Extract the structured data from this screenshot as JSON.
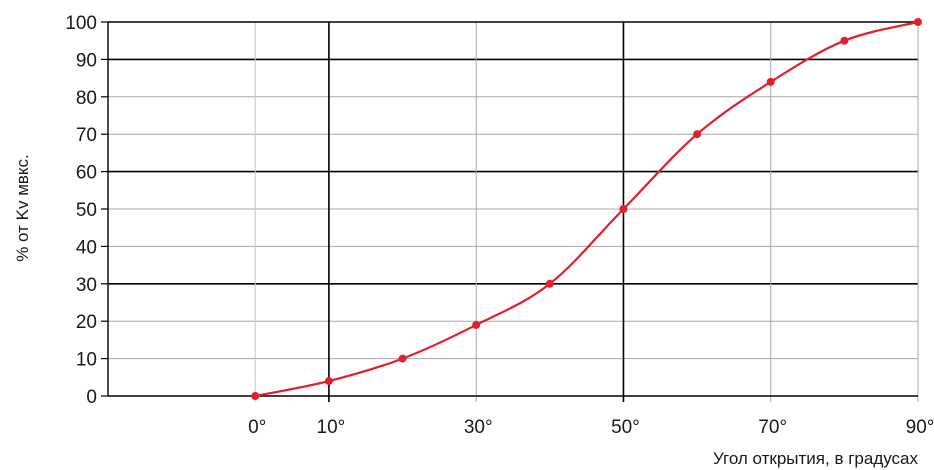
{
  "chart_data": {
    "type": "line",
    "title": "",
    "xlabel": "Угол открытия, в градусах",
    "ylabel": "% от Kv мвкс.",
    "xlim": [
      -20,
      90
    ],
    "ylim": [
      0,
      100
    ],
    "x_ticks": [
      0,
      10,
      30,
      50,
      70,
      90
    ],
    "x_tick_labels": [
      "0°",
      "10°",
      "30°",
      "50°",
      "70°",
      "90°"
    ],
    "y_ticks": [
      0,
      10,
      20,
      30,
      40,
      50,
      60,
      70,
      80,
      90,
      100
    ],
    "y_tick_labels": [
      "0",
      "10",
      "20",
      "30",
      "40",
      "50",
      "60",
      "70",
      "80",
      "90",
      "100"
    ],
    "grid": true,
    "legend": "none",
    "series": [
      {
        "color": "#e0202e",
        "x": [
          0,
          10,
          20,
          30,
          40,
          50,
          60,
          70,
          80,
          90
        ],
        "y": [
          0,
          4,
          10,
          19,
          30,
          50,
          70,
          84,
          95,
          100
        ]
      }
    ]
  }
}
